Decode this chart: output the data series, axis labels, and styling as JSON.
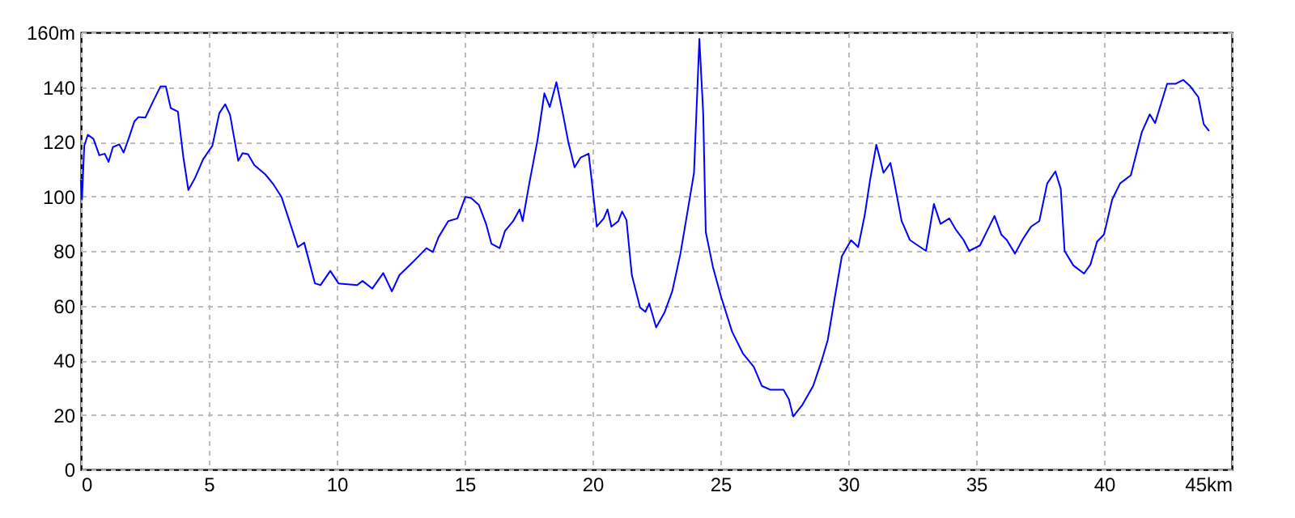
{
  "chart_data": {
    "type": "line",
    "xlim": [
      0,
      45
    ],
    "ylim": [
      0,
      160
    ],
    "xticks": [
      0,
      5,
      10,
      15,
      20,
      25,
      30,
      35,
      40,
      {
        "value": 45,
        "label": "45km"
      }
    ],
    "yticks": [
      0,
      20,
      40,
      60,
      80,
      100,
      120,
      140,
      {
        "value": 160,
        "label": "160m"
      }
    ],
    "grid": true,
    "series": [
      {
        "color": "#0000ff",
        "x": [
          0,
          0.04,
          0.13,
          0.27,
          0.49,
          0.72,
          0.93,
          1.08,
          1.25,
          1.5,
          1.67,
          1.88,
          2.09,
          2.25,
          2.52,
          2.82,
          3.11,
          3.32,
          3.51,
          3.79,
          4.0,
          4.2,
          4.46,
          4.78,
          5.14,
          5.41,
          5.64,
          5.83,
          6.15,
          6.32,
          6.53,
          6.78,
          7.21,
          7.53,
          7.84,
          8.12,
          8.48,
          8.73,
          9.15,
          9.37,
          9.75,
          10.07,
          10.8,
          11.01,
          11.39,
          11.82,
          12.16,
          12.45,
          12.92,
          13.51,
          13.76,
          13.98,
          14.36,
          14.72,
          15.03,
          15.25,
          15.56,
          15.84,
          16.05,
          16.37,
          16.58,
          16.9,
          17.15,
          17.27,
          17.53,
          17.85,
          18.12,
          18.33,
          18.59,
          18.84,
          19.05,
          19.3,
          19.54,
          19.85,
          19.96,
          20.17,
          20.44,
          20.59,
          20.74,
          21.01,
          21.16,
          21.33,
          21.54,
          21.86,
          22.07,
          22.22,
          22.49,
          22.81,
          23.12,
          23.44,
          23.76,
          23.97,
          24.18,
          24.33,
          24.43,
          24.71,
          25.03,
          25.46,
          25.88,
          26.31,
          26.62,
          26.94,
          27.47,
          27.68,
          27.85,
          28.21,
          28.63,
          28.95,
          29.2,
          29.48,
          29.75,
          30.11,
          30.39,
          30.64,
          30.85,
          31.1,
          31.38,
          31.65,
          31.77,
          32.09,
          32.41,
          32.72,
          33.04,
          33.35,
          33.61,
          33.95,
          34.2,
          34.51,
          34.73,
          35.15,
          35.46,
          35.72,
          35.99,
          36.2,
          36.52,
          36.84,
          37.15,
          37.47,
          37.78,
          38.1,
          38.31,
          38.46,
          38.8,
          39.22,
          39.47,
          39.73,
          40.0,
          40.32,
          40.63,
          41.05,
          41.48,
          41.79,
          42.0,
          42.47,
          42.81,
          43.1,
          43.38,
          43.69,
          43.9,
          44.11
        ],
        "values": [
          106,
          98.8,
          118.5,
          122.5,
          121,
          115,
          115.6,
          112.6,
          118,
          119,
          116,
          121.5,
          127.4,
          129,
          128.8,
          134.7,
          140.2,
          140.2,
          132.3,
          131,
          114.6,
          102.3,
          106.7,
          113.6,
          118.5,
          130.4,
          133.7,
          129.8,
          113,
          115.8,
          115.4,
          111.4,
          108,
          104.3,
          99.8,
          91.8,
          81.4,
          83,
          68.1,
          67.5,
          72.7,
          68.1,
          67.5,
          69,
          66.2,
          71.9,
          65.2,
          71.1,
          75.4,
          81,
          79.6,
          85,
          90.9,
          91.9,
          99.8,
          99.4,
          96.8,
          89.9,
          82.6,
          81,
          87.3,
          90.9,
          95.2,
          90.9,
          104.7,
          120.5,
          137.7,
          132.7,
          141.8,
          130.4,
          120.1,
          110.6,
          114.2,
          115.6,
          106.7,
          88.9,
          91.9,
          95.2,
          88.9,
          90.9,
          94.4,
          91.3,
          71.1,
          59.3,
          57.7,
          60.8,
          52,
          57.3,
          65.2,
          79,
          96.8,
          108.6,
          157.6,
          130.4,
          86.9,
          74.1,
          63.2,
          50.4,
          42.5,
          37.5,
          30.6,
          29.2,
          29.2,
          25.7,
          19.4,
          23.7,
          30.6,
          39.5,
          47.4,
          63.2,
          78,
          83.9,
          81.4,
          92.8,
          105.7,
          118.9,
          108.6,
          112.2,
          106.7,
          90.9,
          84,
          82,
          80,
          97.2,
          89.9,
          91.9,
          87.9,
          84,
          80,
          82,
          87.9,
          92.8,
          85.9,
          84,
          79,
          84.5,
          88.9,
          90.9,
          104.7,
          109.1,
          102.7,
          80,
          74.7,
          71.7,
          75,
          83.4,
          86,
          98.8,
          104.7,
          107.7,
          123.5,
          130,
          126.8,
          141.2,
          141.2,
          142.6,
          140.2,
          136.3,
          126.4,
          123.9
        ]
      }
    ]
  }
}
